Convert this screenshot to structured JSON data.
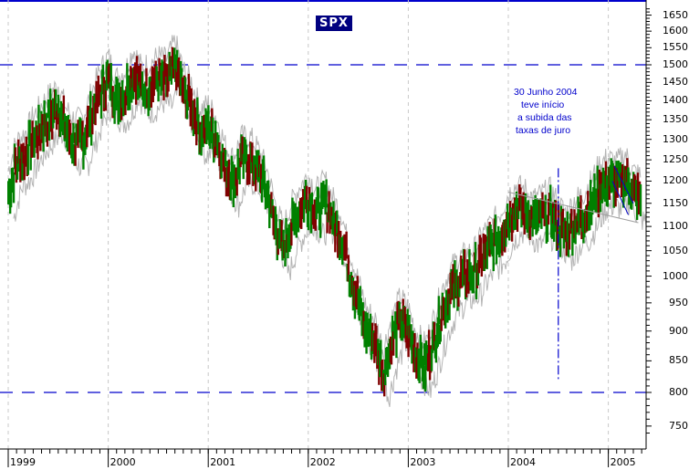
{
  "chart_data": {
    "type": "line",
    "subtype": "bar-ohlc-with-envelope",
    "title": "SPX",
    "xlabel": "",
    "ylabel": "",
    "yscale": "log",
    "ylim": [
      730,
      1680
    ],
    "y_ticks": [
      750,
      800,
      850,
      900,
      950,
      1000,
      1050,
      1100,
      1150,
      1200,
      1250,
      1300,
      1350,
      1400,
      1450,
      1500,
      1550,
      1600,
      1650
    ],
    "x_ticks": [
      "1999",
      "2000",
      "2001",
      "2002",
      "2003",
      "2004",
      "2005"
    ],
    "grid": "vertical dashed at year boundaries",
    "colors": {
      "up": "#008000",
      "down": "#800000",
      "envelope": "#b0b0b0",
      "lines": "#0000cc",
      "title_bg": "#000080"
    },
    "series": [
      {
        "name": "SPX (monthly approx.)",
        "x": [
          1999.0,
          1999.08,
          1999.17,
          1999.25,
          1999.33,
          1999.42,
          1999.5,
          1999.58,
          1999.67,
          1999.75,
          1999.83,
          1999.92,
          2000.0,
          2000.08,
          2000.17,
          2000.25,
          2000.33,
          2000.42,
          2000.5,
          2000.58,
          2000.67,
          2000.75,
          2000.83,
          2000.92,
          2001.0,
          2001.08,
          2001.17,
          2001.25,
          2001.33,
          2001.42,
          2001.5,
          2001.58,
          2001.67,
          2001.75,
          2001.83,
          2001.92,
          2002.0,
          2002.08,
          2002.17,
          2002.25,
          2002.33,
          2002.42,
          2002.5,
          2002.58,
          2002.67,
          2002.75,
          2002.83,
          2002.92,
          2003.0,
          2003.08,
          2003.17,
          2003.25,
          2003.33,
          2003.42,
          2003.5,
          2003.58,
          2003.67,
          2003.75,
          2003.83,
          2003.92,
          2004.0,
          2004.08,
          2004.17,
          2004.25,
          2004.33,
          2004.42,
          2004.5,
          2004.58,
          2004.67,
          2004.75,
          2004.83,
          2004.92,
          2005.0,
          2005.08,
          2005.17,
          2005.25,
          2005.33
        ],
        "values": [
          1170,
          1240,
          1260,
          1300,
          1330,
          1360,
          1380,
          1320,
          1290,
          1300,
          1360,
          1420,
          1460,
          1400,
          1420,
          1480,
          1430,
          1440,
          1460,
          1450,
          1500,
          1420,
          1390,
          1320,
          1330,
          1300,
          1230,
          1200,
          1250,
          1250,
          1220,
          1180,
          1100,
          1050,
          1100,
          1140,
          1160,
          1130,
          1150,
          1110,
          1080,
          1000,
          950,
          900,
          880,
          830,
          880,
          920,
          900,
          860,
          840,
          880,
          930,
          970,
          990,
          1000,
          1010,
          1040,
          1060,
          1080,
          1120,
          1140,
          1130,
          1110,
          1120,
          1130,
          1100,
          1080,
          1110,
          1120,
          1150,
          1190,
          1200,
          1190,
          1210,
          1170,
          1160
        ]
      }
    ],
    "annotations": [
      {
        "type": "hline",
        "value": 1500,
        "style": "dashed blue"
      },
      {
        "type": "hline",
        "value": 800,
        "style": "dashed blue"
      },
      {
        "type": "vline",
        "x": 2004.5,
        "style": "dash-dot blue",
        "from": 820,
        "to": 1230
      },
      {
        "type": "trendline",
        "from": [
          2004.0,
          1175
        ],
        "to": [
          2005.3,
          1108
        ],
        "style": "gray"
      },
      {
        "type": "channel",
        "lines": [
          [
            [
              2005.06,
              1235
            ],
            [
              2005.25,
              1150
            ]
          ],
          [
            [
              2005.04,
              1200
            ],
            [
              2005.2,
              1125
            ]
          ]
        ],
        "style": "blue"
      },
      {
        "type": "text",
        "x": 2004.1,
        "lines": [
          "30 Junho 2004",
          "teve início",
          "a subida das",
          "taxas de juro"
        ]
      }
    ]
  },
  "header": {
    "title": "SPX"
  },
  "annotation_text": {
    "line1": "30 Junho 2004",
    "line2": "teve início",
    "line3": "a subida das",
    "line4": "taxas de juro"
  },
  "y_axis": {
    "labels": [
      "1650",
      "1600",
      "1550",
      "1500",
      "1450",
      "1400",
      "1350",
      "1300",
      "1250",
      "1200",
      "1150",
      "1100",
      "1050",
      "1000",
      "950",
      "900",
      "850",
      "800",
      "750"
    ]
  },
  "x_axis": {
    "labels": [
      "1999",
      "2000",
      "2001",
      "2002",
      "2003",
      "2004",
      "2005"
    ]
  }
}
